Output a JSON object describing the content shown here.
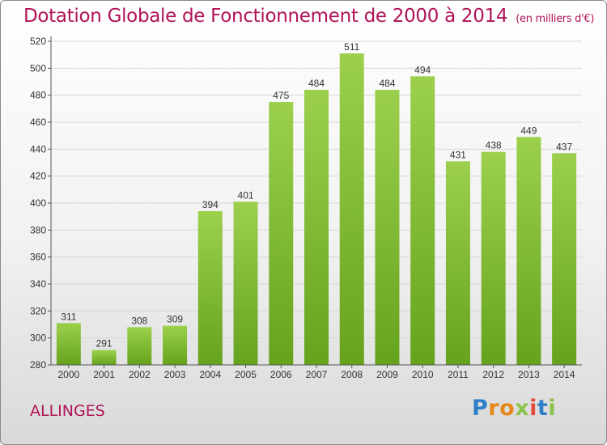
{
  "header": {
    "title": "Dotation Globale de Fonctionnement de 2000 à 2014",
    "subtitle": "(en milliers d'€)"
  },
  "footer": {
    "commune": "ALLINGES",
    "logo_text": "Proxiti",
    "logo_letters": [
      {
        "ch": "P",
        "color": "#2f7fc8"
      },
      {
        "ch": "r",
        "color": "#e8871e"
      },
      {
        "ch": "o",
        "color": "#e8871e"
      },
      {
        "ch": "x",
        "color": "#8bc34a"
      },
      {
        "ch": "i",
        "color": "#e04a3a"
      },
      {
        "ch": "t",
        "color": "#2f7fc8"
      },
      {
        "ch": "i",
        "color": "#8bc34a"
      }
    ]
  },
  "colors": {
    "bar_light": "#9cd04c",
    "bar_dark": "#66a31d",
    "title": "#b0135a",
    "grid": "#d8d8d8",
    "axis": "#555555"
  },
  "chart_data": {
    "type": "bar",
    "categories": [
      "2000",
      "2001",
      "2002",
      "2003",
      "2004",
      "2005",
      "2006",
      "2007",
      "2008",
      "2009",
      "2010",
      "2011",
      "2012",
      "2013",
      "2014"
    ],
    "values": [
      311,
      291,
      308,
      309,
      394,
      401,
      475,
      484,
      511,
      484,
      494,
      431,
      438,
      449,
      437
    ],
    "ylim": [
      280,
      520
    ],
    "yticks": [
      280,
      300,
      320,
      340,
      360,
      380,
      400,
      420,
      440,
      460,
      480,
      500,
      520
    ],
    "grid": true
  }
}
